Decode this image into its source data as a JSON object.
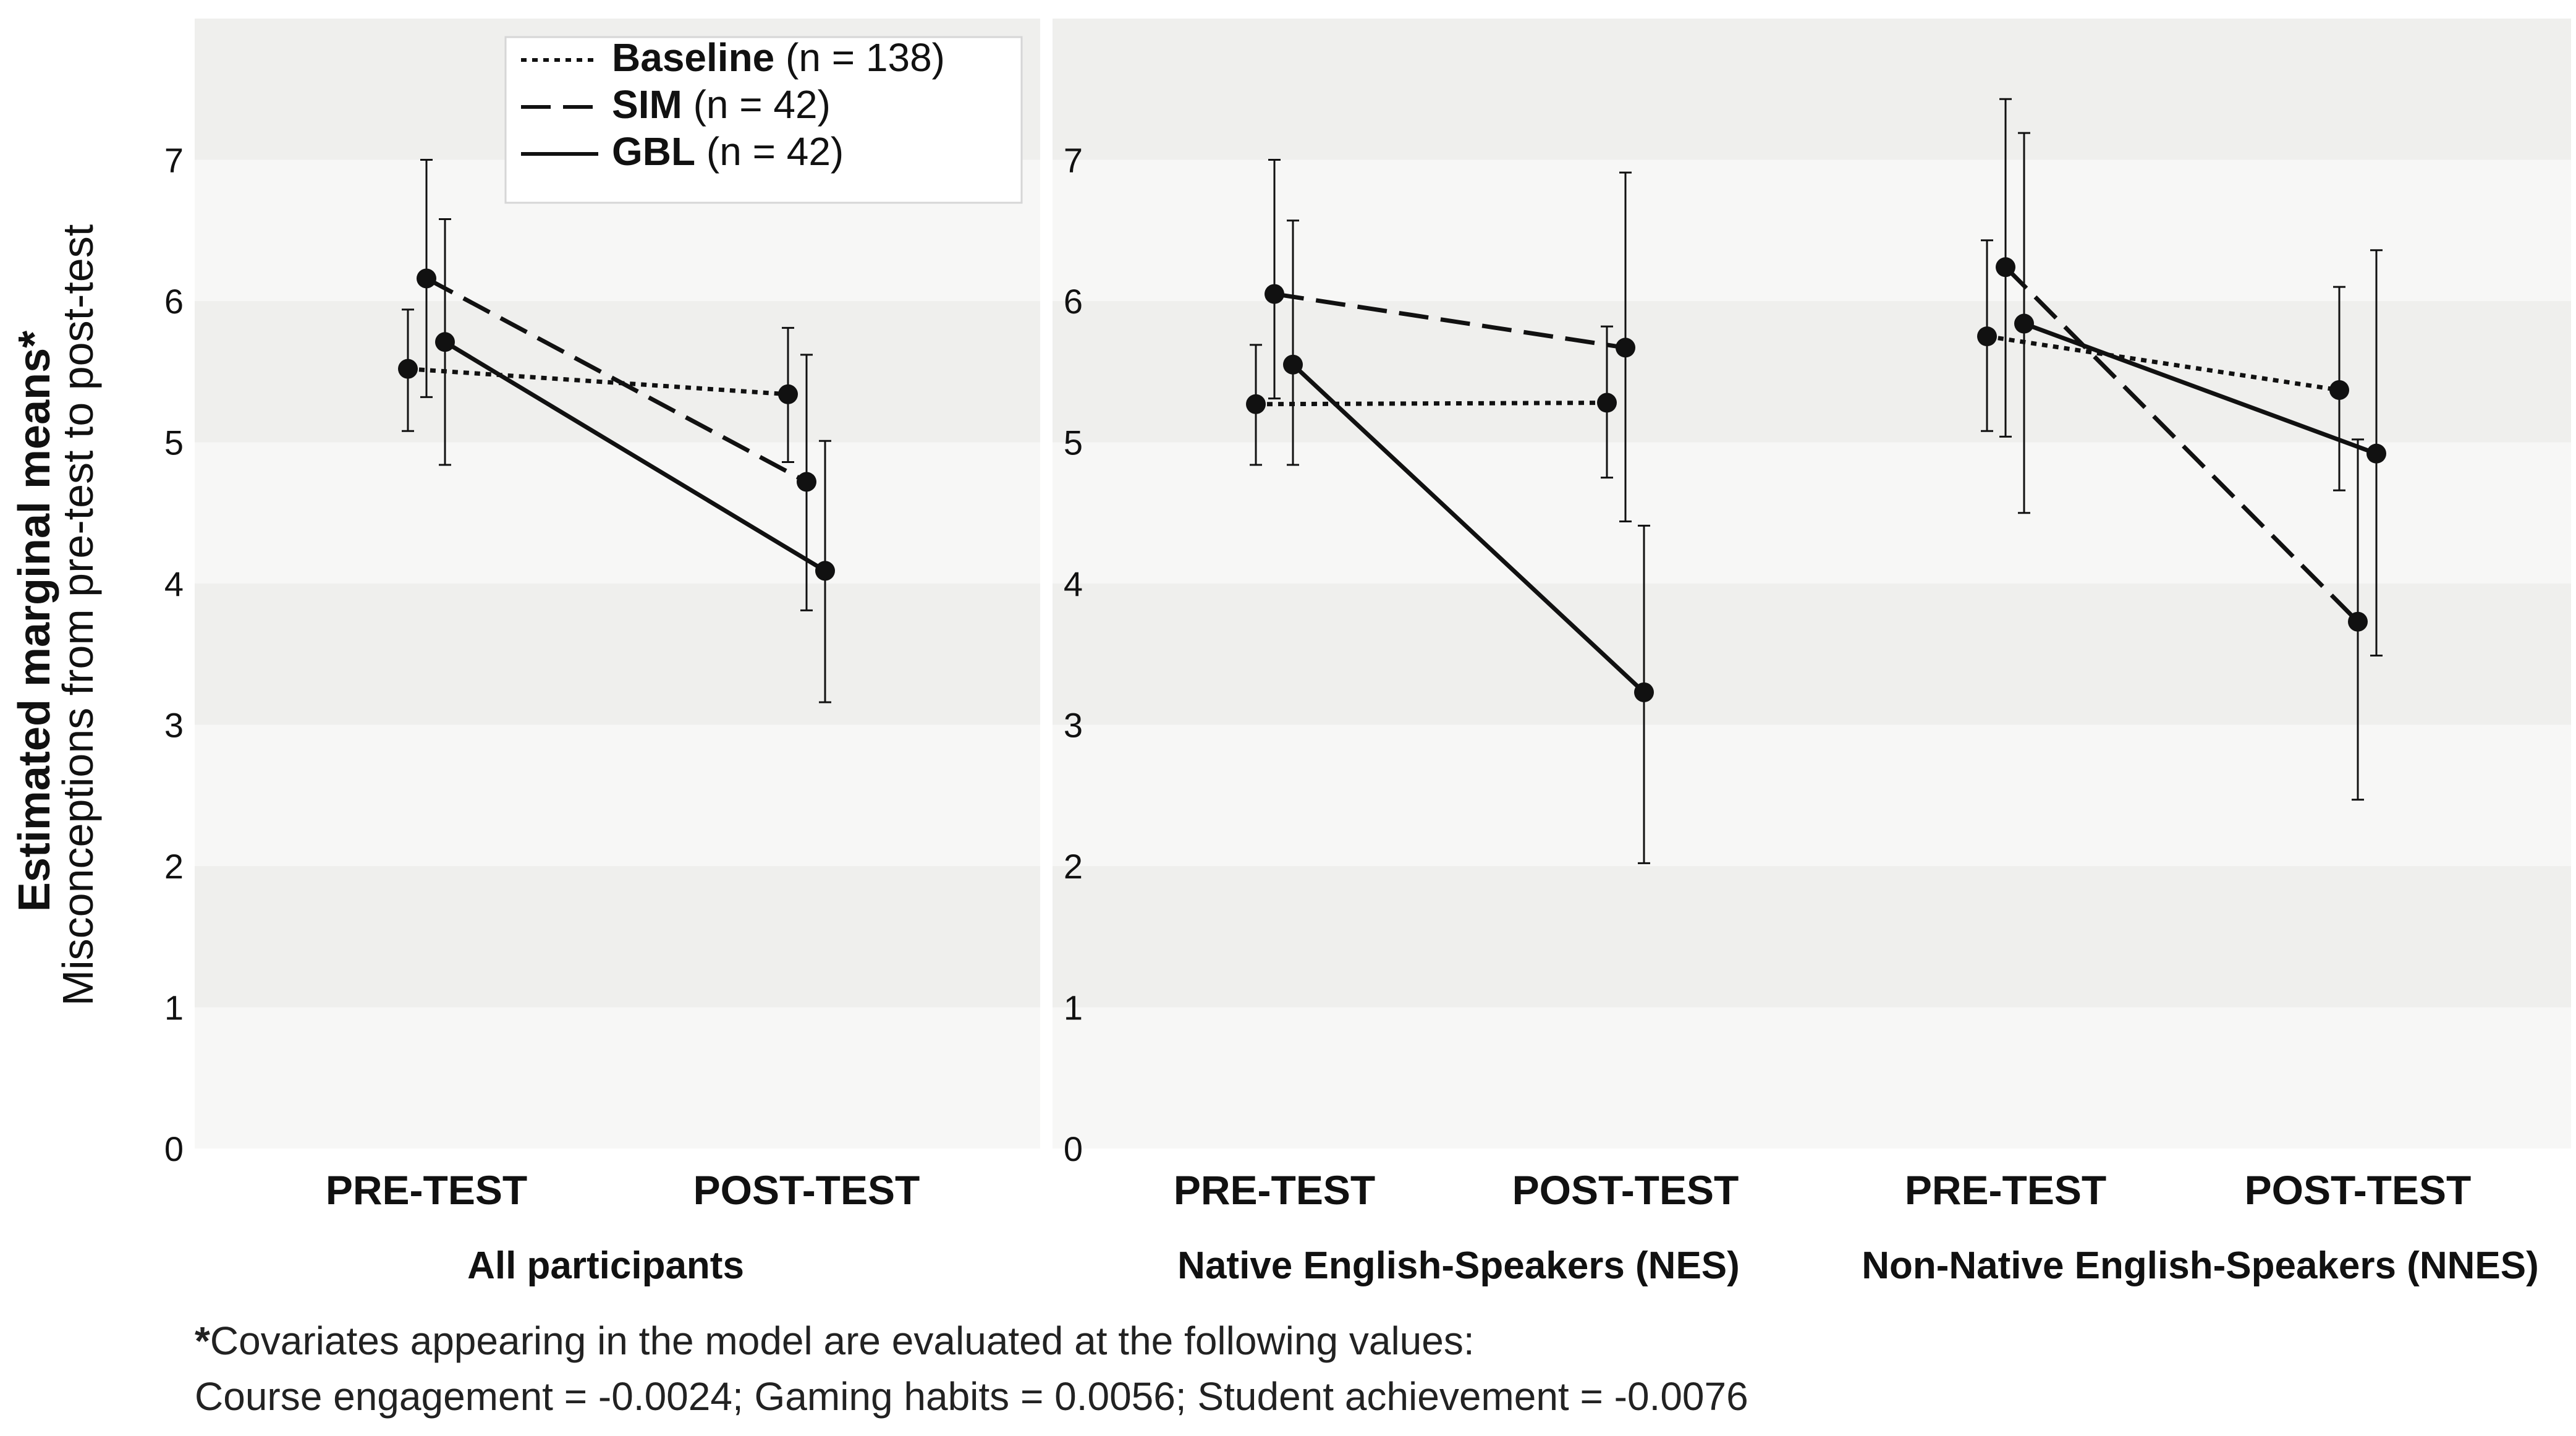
{
  "y_axis": {
    "title_bold": "Estimated marginal means*",
    "subtitle": "Misconceptions from pre-test to post-test",
    "ticks": [
      "0",
      "1",
      "2",
      "3",
      "4",
      "5",
      "6",
      "7"
    ]
  },
  "legend": {
    "placement": "top-right of first panel",
    "entries": [
      {
        "name": "Baseline",
        "n": "(n = 138)",
        "style": "dotted"
      },
      {
        "name": "SIM",
        "n": "(n = 42)",
        "style": "dashed"
      },
      {
        "name": "GBL",
        "n": "(n = 42)",
        "style": "solid"
      }
    ]
  },
  "footnote": {
    "star": "*",
    "line1": "Covariates appearing in the model are evaluated at the following values:",
    "line2": "Course engagement = -0.0024; Gaming habits = 0.0056; Student achievement = -0.0076"
  },
  "colors": {
    "band_dark": "#efefed",
    "band_light": "#f7f7f6",
    "ink": "#111111",
    "gap": "#ffffff"
  },
  "chart_data": [
    {
      "type": "line",
      "title": "All participants",
      "categories": [
        "PRE-TEST",
        "POST-TEST"
      ],
      "ylim": [
        0,
        8
      ],
      "series": [
        {
          "name": "Baseline",
          "values": [
            5.52,
            5.34
          ],
          "lower": [
            5.08,
            4.86
          ],
          "upper": [
            5.94,
            5.81
          ]
        },
        {
          "name": "SIM",
          "values": [
            6.16,
            4.72
          ],
          "lower": [
            5.32,
            3.81
          ],
          "upper": [
            7.0,
            5.62
          ]
        },
        {
          "name": "GBL",
          "values": [
            5.71,
            4.09
          ],
          "lower": [
            4.84,
            3.16
          ],
          "upper": [
            6.58,
            5.01
          ]
        }
      ]
    },
    {
      "type": "line",
      "title": "Native English-Speakers (NES)",
      "categories": [
        "PRE-TEST",
        "POST-TEST"
      ],
      "ylim": [
        0,
        8
      ],
      "series": [
        {
          "name": "Baseline",
          "values": [
            5.27,
            5.28
          ],
          "lower": [
            4.84,
            4.75
          ],
          "upper": [
            5.69,
            5.82
          ]
        },
        {
          "name": "SIM",
          "values": [
            6.05,
            5.67
          ],
          "lower": [
            5.31,
            4.44
          ],
          "upper": [
            7.0,
            6.91
          ]
        },
        {
          "name": "GBL",
          "values": [
            5.55,
            3.23
          ],
          "lower": [
            4.84,
            2.02
          ],
          "upper": [
            6.57,
            4.41
          ]
        }
      ]
    },
    {
      "type": "line",
      "title": "Non-Native English-Speakers (NNES)",
      "categories": [
        "PRE-TEST",
        "POST-TEST"
      ],
      "ylim": [
        0,
        8
      ],
      "series": [
        {
          "name": "Baseline",
          "values": [
            5.75,
            5.37
          ],
          "lower": [
            5.08,
            4.66
          ],
          "upper": [
            6.43,
            6.1
          ]
        },
        {
          "name": "SIM",
          "values": [
            6.24,
            3.73
          ],
          "lower": [
            5.04,
            2.47
          ],
          "upper": [
            7.43,
            5.02
          ]
        },
        {
          "name": "GBL",
          "values": [
            5.84,
            4.92
          ],
          "lower": [
            4.5,
            3.49
          ],
          "upper": [
            7.19,
            6.36
          ]
        }
      ]
    }
  ]
}
